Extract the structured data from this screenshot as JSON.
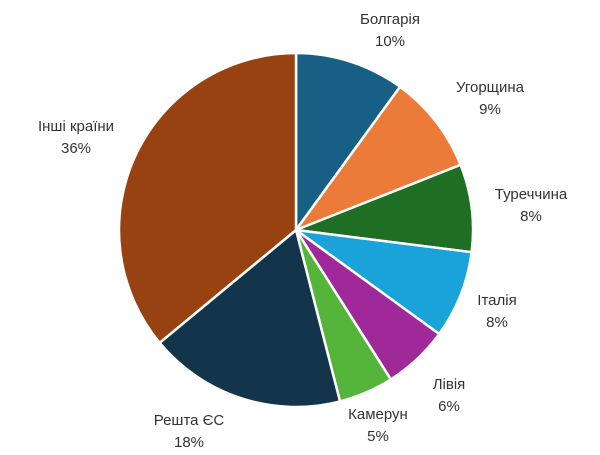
{
  "chart_data": {
    "type": "pie",
    "title": "",
    "slices": [
      {
        "label": "Болгарія",
        "value": 10,
        "value_label": "10%",
        "color": "#185f85"
      },
      {
        "label": "Угорщина",
        "value": 9,
        "value_label": "9%",
        "color": "#ec7a38"
      },
      {
        "label": "Туреччина",
        "value": 8,
        "value_label": "8%",
        "color": "#1e6e23"
      },
      {
        "label": "Італія",
        "value": 8,
        "value_label": "8%",
        "color": "#1aa3d9"
      },
      {
        "label": "Лівія",
        "value": 6,
        "value_label": "6%",
        "color": "#a0299a"
      },
      {
        "label": "Камерун",
        "value": 5,
        "value_label": "5%",
        "color": "#55b43a"
      },
      {
        "label": "Решта ЄС",
        "value": 18,
        "value_label": "18%",
        "color": "#12354b"
      },
      {
        "label": "Інші країни",
        "value": 36,
        "value_label": "36%",
        "color": "#974210"
      }
    ],
    "start_angle": "12 o'clock",
    "direction": "clockwise",
    "legend": "none"
  }
}
